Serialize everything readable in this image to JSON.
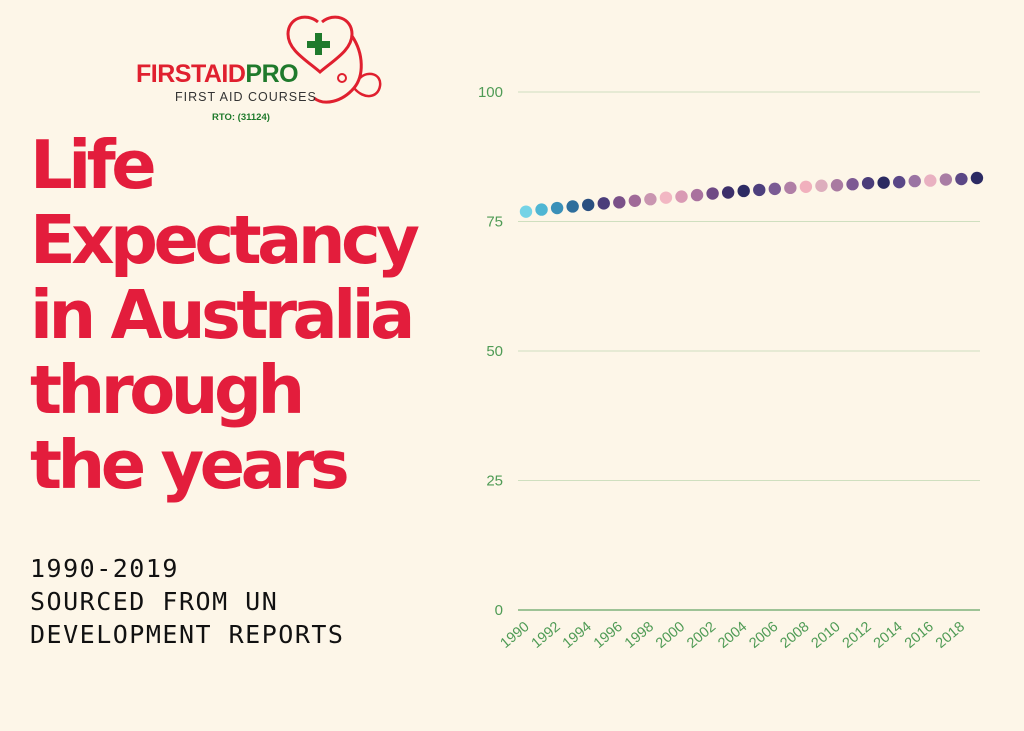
{
  "logo": {
    "brand_part1": "FIRSTAID",
    "brand_part2": "PRO",
    "tagline": "FIRST AID COURSES",
    "rto": "RTO: (31124)",
    "colors": {
      "red": "#e0202f",
      "green": "#1f7a2c"
    }
  },
  "headline": {
    "lines": [
      "Life",
      "Expectancy",
      "in Australia",
      "through",
      "the years"
    ],
    "color": "#e31d3c"
  },
  "subtitle": {
    "lines": [
      "1990-2019",
      "SOURCED FROM UN",
      "DEVELOPMENT REPORTS"
    ]
  },
  "chart_data": {
    "type": "scatter",
    "title": "",
    "xlabel": "",
    "ylabel": "",
    "ylim": [
      0,
      100
    ],
    "yticks": [
      0,
      25,
      50,
      75,
      100
    ],
    "xtick_labels": [
      "1990",
      "1992",
      "1994",
      "1996",
      "1998",
      "2000",
      "2002",
      "2004",
      "2006",
      "2008",
      "2010",
      "2012",
      "2014",
      "2016",
      "2018"
    ],
    "x": [
      1990,
      1991,
      1992,
      1993,
      1994,
      1995,
      1996,
      1997,
      1998,
      1999,
      2000,
      2001,
      2002,
      2003,
      2004,
      2005,
      2006,
      2007,
      2008,
      2009,
      2010,
      2011,
      2012,
      2013,
      2014,
      2015,
      2016,
      2017,
      2018,
      2019
    ],
    "values": [
      76.9,
      77.3,
      77.6,
      77.9,
      78.2,
      78.5,
      78.7,
      79.0,
      79.3,
      79.6,
      79.8,
      80.1,
      80.4,
      80.6,
      80.9,
      81.1,
      81.3,
      81.5,
      81.7,
      81.9,
      82.0,
      82.2,
      82.4,
      82.5,
      82.6,
      82.8,
      82.9,
      83.1,
      83.2,
      83.4
    ],
    "point_colors": [
      "#74d3e6",
      "#4fb6d3",
      "#3a90b8",
      "#2e6e9c",
      "#2a4f80",
      "#4b3d7a",
      "#7a5088",
      "#a06a98",
      "#c995b0",
      "#f2b7c3",
      "#d99ab4",
      "#a9729e",
      "#6f4a85",
      "#3c2f6a",
      "#2d2b63",
      "#4d3f7d",
      "#7a5b94",
      "#b07fa6",
      "#f1b0bd",
      "#ddaebd",
      "#a97aa1",
      "#7d5a93",
      "#4a3c79",
      "#2b2a61",
      "#5a4787",
      "#9b74a3",
      "#e9b1c1",
      "#a97da4",
      "#5b4785",
      "#2c2a63"
    ],
    "grid": true,
    "grid_color": "#cfdfbf",
    "axis_color": "#7fb27a",
    "tick_color": "#4f9b55"
  }
}
